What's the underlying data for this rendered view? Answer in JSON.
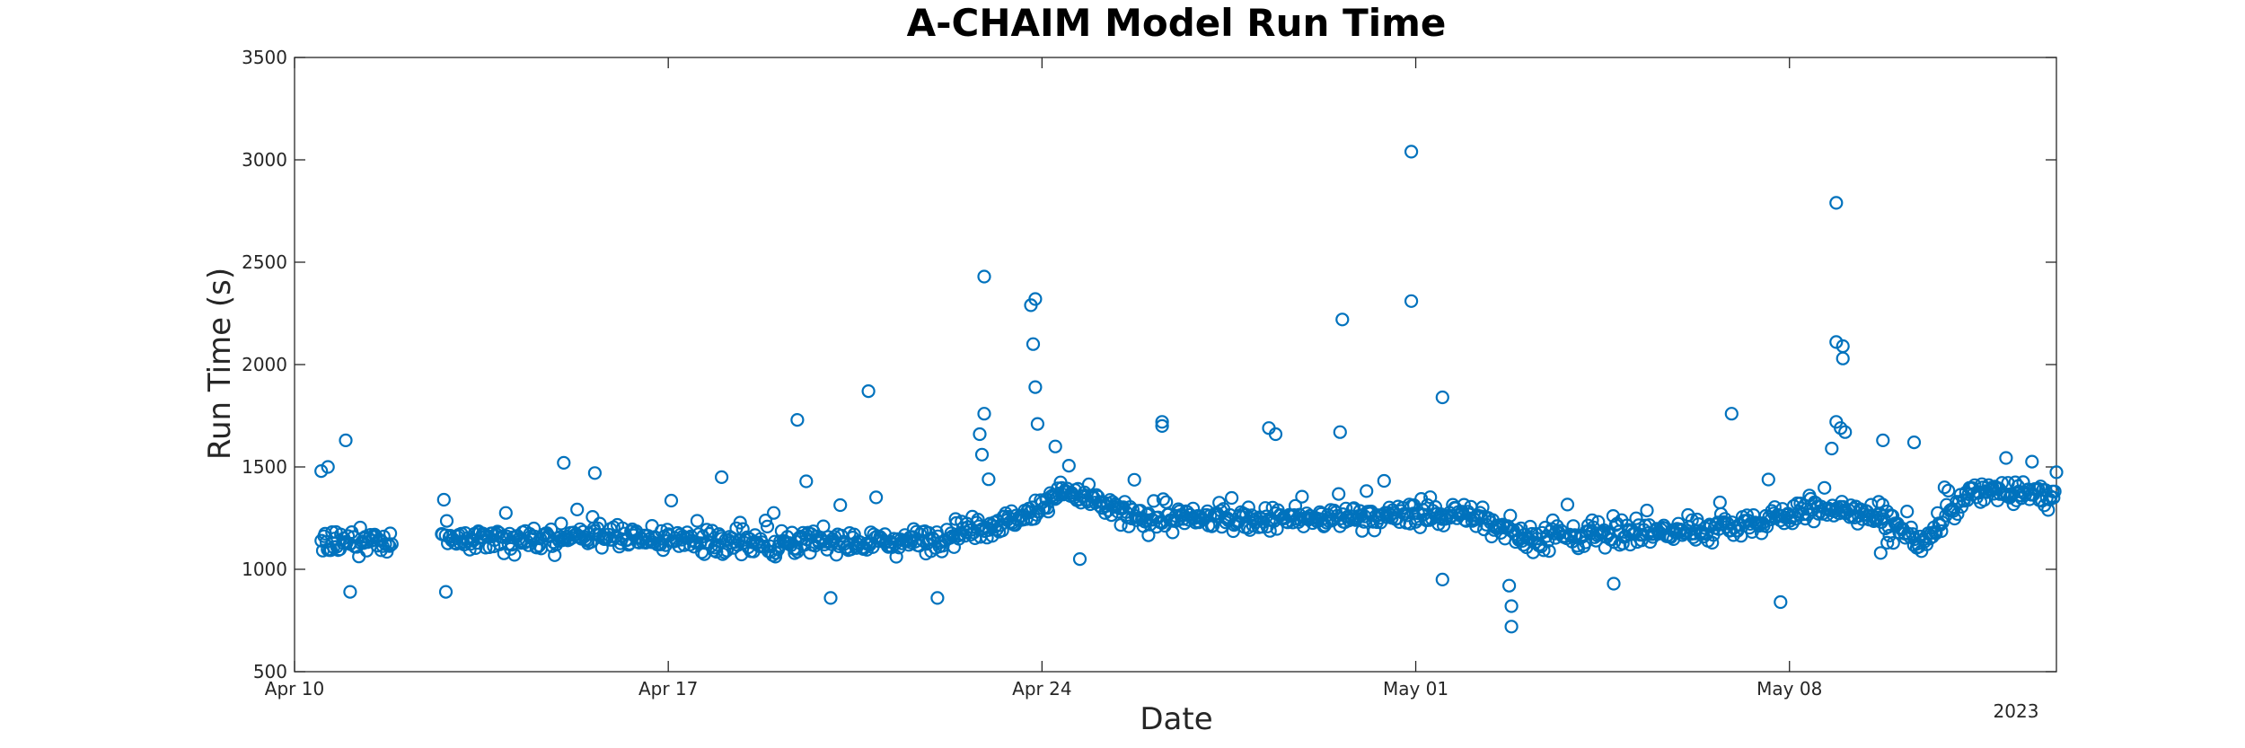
{
  "chart_data": {
    "type": "scatter",
    "title": "A-CHAIM Model Run Time",
    "xlabel": "Date",
    "ylabel": "Run Time (s)",
    "year_label": "2023",
    "marker": "open-circle",
    "color": "#0072BD",
    "grid": false,
    "legend": "none",
    "xlim": [
      "2023-04-10",
      "2023-05-13"
    ],
    "ylim": [
      500,
      3500
    ],
    "x_ticks": [
      {
        "date": "2023-04-10",
        "label": "Apr 10"
      },
      {
        "date": "2023-04-17",
        "label": "Apr 17"
      },
      {
        "date": "2023-04-24",
        "label": "Apr 24"
      },
      {
        "date": "2023-05-01",
        "label": "May 01"
      },
      {
        "date": "2023-05-08",
        "label": "May 08"
      }
    ],
    "y_ticks": [
      500,
      1000,
      1500,
      2000,
      2500,
      3000,
      3500
    ],
    "segments": [
      {
        "start": "2023-04-10 12:00",
        "end": "2023-04-11 20:00",
        "levels": [
          [
            0,
            1120
          ],
          [
            1,
            1150
          ]
        ]
      },
      {
        "start": "2023-04-12 18:00",
        "end": "2023-04-19 00:00",
        "levels": [
          [
            0,
            1150
          ],
          [
            0.5,
            1160
          ],
          [
            1,
            1120
          ]
        ]
      },
      {
        "start": "2023-04-19 00:00",
        "end": "2023-04-26 00:00",
        "levels": [
          [
            0,
            1130
          ],
          [
            0.4,
            1140
          ],
          [
            0.65,
            1250
          ],
          [
            0.78,
            1380
          ],
          [
            1,
            1230
          ]
        ]
      },
      {
        "start": "2023-04-26 00:00",
        "end": "2023-05-03 00:00",
        "levels": [
          [
            0,
            1250
          ],
          [
            0.3,
            1240
          ],
          [
            0.6,
            1260
          ],
          [
            0.85,
            1270
          ],
          [
            1,
            1170
          ]
        ]
      },
      {
        "start": "2023-05-03 00:00",
        "end": "2023-05-13 00:00",
        "levels": [
          [
            0,
            1150
          ],
          [
            0.35,
            1190
          ],
          [
            0.55,
            1300
          ],
          [
            0.65,
            1280
          ],
          [
            0.75,
            1130
          ],
          [
            0.85,
            1390
          ],
          [
            1,
            1360
          ]
        ]
      }
    ],
    "outliers": [
      {
        "x": "2023-04-10 12:00",
        "y": 1480
      },
      {
        "x": "2023-04-10 15:00",
        "y": 1500
      },
      {
        "x": "2023-04-10 23:00",
        "y": 1630
      },
      {
        "x": "2023-04-11 01:00",
        "y": 890
      },
      {
        "x": "2023-04-12 20:00",
        "y": 890
      },
      {
        "x": "2023-04-15 01:00",
        "y": 1520
      },
      {
        "x": "2023-04-15 15:00",
        "y": 1470
      },
      {
        "x": "2023-04-18 00:00",
        "y": 1450
      },
      {
        "x": "2023-04-19 10:00",
        "y": 1730
      },
      {
        "x": "2023-04-19 14:00",
        "y": 1430
      },
      {
        "x": "2023-04-20 01:00",
        "y": 860
      },
      {
        "x": "2023-04-20 18:00",
        "y": 1870
      },
      {
        "x": "2023-04-22 01:00",
        "y": 860
      },
      {
        "x": "2023-04-23 00:00",
        "y": 1440
      },
      {
        "x": "2023-04-22 22:00",
        "y": 2430
      },
      {
        "x": "2023-04-22 22:00",
        "y": 1760
      },
      {
        "x": "2023-04-22 20:00",
        "y": 1660
      },
      {
        "x": "2023-04-22 21:00",
        "y": 1560
      },
      {
        "x": "2023-04-23 19:00",
        "y": 2290
      },
      {
        "x": "2023-04-23 21:00",
        "y": 2320
      },
      {
        "x": "2023-04-23 20:00",
        "y": 2100
      },
      {
        "x": "2023-04-23 21:00",
        "y": 1890
      },
      {
        "x": "2023-04-23 22:00",
        "y": 1710
      },
      {
        "x": "2023-04-24 06:00",
        "y": 1600
      },
      {
        "x": "2023-04-24 17:00",
        "y": 1050
      },
      {
        "x": "2023-04-26 06:00",
        "y": 1720
      },
      {
        "x": "2023-04-26 06:00",
        "y": 1700
      },
      {
        "x": "2023-04-28 06:00",
        "y": 1690
      },
      {
        "x": "2023-04-28 09:00",
        "y": 1660
      },
      {
        "x": "2023-04-29 15:00",
        "y": 2220
      },
      {
        "x": "2023-04-29 14:00",
        "y": 1670
      },
      {
        "x": "2023-04-30 22:00",
        "y": 3040
      },
      {
        "x": "2023-04-30 22:00",
        "y": 2310
      },
      {
        "x": "2023-05-01 12:00",
        "y": 1840
      },
      {
        "x": "2023-05-01 12:00",
        "y": 950
      },
      {
        "x": "2023-05-02 19:00",
        "y": 820
      },
      {
        "x": "2023-05-02 19:00",
        "y": 720
      },
      {
        "x": "2023-05-02 18:00",
        "y": 920
      },
      {
        "x": "2023-05-04 17:00",
        "y": 930
      },
      {
        "x": "2023-05-06 22:00",
        "y": 1760
      },
      {
        "x": "2023-05-07 20:00",
        "y": 840
      },
      {
        "x": "2023-05-08 19:00",
        "y": 1590
      },
      {
        "x": "2023-05-08 21:00",
        "y": 2790
      },
      {
        "x": "2023-05-08 21:00",
        "y": 2110
      },
      {
        "x": "2023-05-09 00:00",
        "y": 2090
      },
      {
        "x": "2023-05-09 00:00",
        "y": 2030
      },
      {
        "x": "2023-05-08 21:00",
        "y": 1720
      },
      {
        "x": "2023-05-08 23:00",
        "y": 1690
      },
      {
        "x": "2023-05-09 01:00",
        "y": 1670
      },
      {
        "x": "2023-05-09 18:00",
        "y": 1630
      },
      {
        "x": "2023-05-10 08:00",
        "y": 1620
      },
      {
        "x": "2023-05-09 17:00",
        "y": 1080
      },
      {
        "x": "2023-05-09 20:00",
        "y": 1130
      }
    ]
  }
}
